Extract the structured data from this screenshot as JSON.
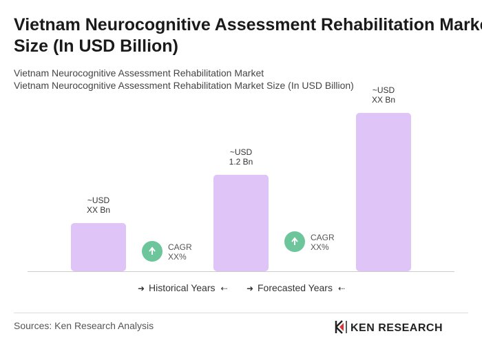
{
  "chart_data": {
    "type": "bar",
    "title": "Vietnam Neurocognitive Assessment Rehabilitation Market Size (In USD Billion)",
    "subtitle": [
      "Vietnam Neurocognitive Assessment Rehabilitation Market",
      "Vietnam Neurocognitive Assessment Rehabilitation Market Size (In USD Billion)"
    ],
    "values": [
      0.6,
      1.2,
      1.97
    ],
    "value_labels": [
      [
        "~USD",
        "XX Bn"
      ],
      [
        "~USD",
        "1.2 Bn"
      ],
      [
        "~USD",
        "XX Bn"
      ]
    ],
    "color": "#dfc4f7",
    "annotations": [
      [
        "CAGR",
        "XX%"
      ],
      [
        "CAGR",
        "XX%"
      ]
    ],
    "legend": [
      "Historical Years",
      "Forecasted Years"
    ],
    "source": "Sources: Ken Research Analysis",
    "logo": "KEN RESEARCH"
  }
}
